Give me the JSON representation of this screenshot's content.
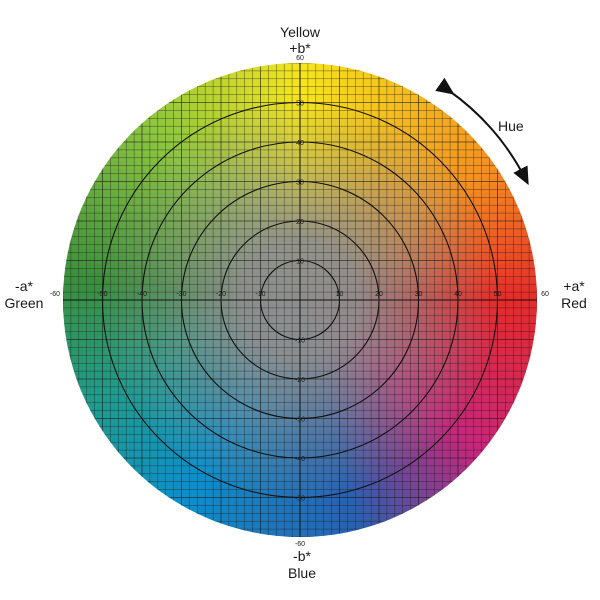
{
  "labels": {
    "top_line1": "Yellow",
    "top_line2": "+b*",
    "bottom_line1": "-b*",
    "bottom_line2": "Blue",
    "left_line1": "-a*",
    "left_line2": "Green",
    "right_line1": "+a*",
    "right_line2": "Red",
    "hue": "Hue"
  },
  "ticks": {
    "a_axis": [
      "-60",
      "-50",
      "-40",
      "-30",
      "-20",
      "-10",
      "10",
      "20",
      "30",
      "40",
      "50",
      "60"
    ],
    "b_axis_pos": [
      "60",
      "50",
      "40",
      "30",
      "20",
      "10"
    ],
    "b_axis_neg": [
      "-10",
      "-20",
      "-30",
      "-40",
      "-50",
      "-60"
    ]
  },
  "diagram": {
    "rings": [
      10,
      20,
      30,
      40,
      50
    ],
    "range": 60,
    "hue_colors": {
      "yellow": "#f6e51c",
      "orange": "#f39021",
      "red": "#e42a2a",
      "magenta": "#c6277b",
      "blue": "#2b5fae",
      "cyan": "#0d8fcb",
      "teal": "#1f9c8a",
      "green": "#3b8f3c",
      "lime": "#8ec63f",
      "center_gray": "#8e8e8e"
    }
  }
}
